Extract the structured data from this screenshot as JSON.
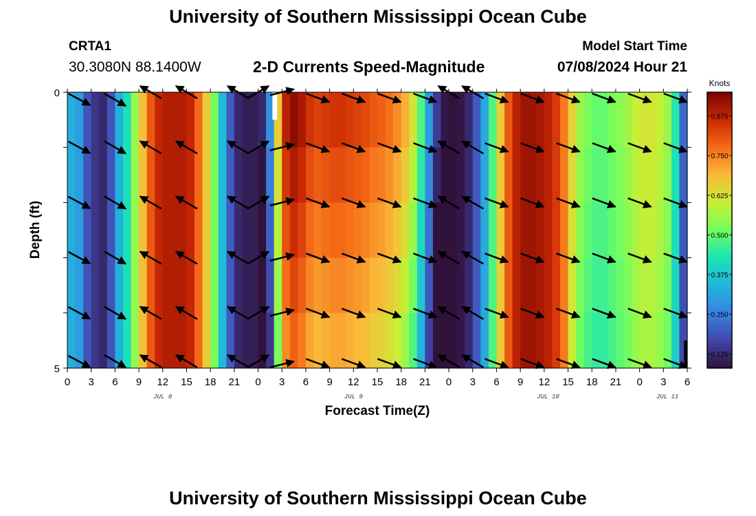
{
  "header": {
    "title": "University of Southern Mississippi Ocean Cube",
    "station": "CRTA1",
    "coords": "30.3080N  88.1400W",
    "subtitle": "2-D Currents Speed-Magnitude",
    "model_start_label": "Model Start Time",
    "model_start_value": "07/08/2024 Hour 21"
  },
  "footer": {
    "title": "University of Southern Mississippi Ocean Cube"
  },
  "chart_data": {
    "type": "heatmap",
    "title": "2-D Currents Speed-Magnitude",
    "xlabel": "Forecast Time(Z)",
    "ylabel": "Depth (ft)",
    "ylim": [
      0,
      5
    ],
    "y_ticks": [
      "0",
      "5"
    ],
    "x_ticks": [
      "0",
      "3",
      "6",
      "9",
      "12",
      "15",
      "18",
      "21",
      "0",
      "3",
      "6",
      "9",
      "12",
      "15",
      "18",
      "21",
      "0",
      "3",
      "6",
      "9",
      "12",
      "15",
      "18",
      "21",
      "0",
      "3",
      "6"
    ],
    "day_labels": [
      "JUL 8",
      "JUL 9",
      "JUL 10",
      "JUL 11"
    ],
    "colorbar": {
      "unit": "Knots",
      "ticks": [
        "0.125",
        "0.250",
        "0.375",
        "0.500",
        "0.625",
        "0.750",
        "0.875"
      ],
      "range": [
        0.08,
        0.95
      ]
    },
    "speed_profile_knots": [
      0.33,
      0.3,
      0.19,
      0.14,
      0.12,
      0.19,
      0.33,
      0.42,
      0.55,
      0.68,
      0.8,
      0.87,
      0.89,
      0.89,
      0.89,
      0.87,
      0.78,
      0.66,
      0.52,
      0.35,
      0.2,
      0.12,
      0.1,
      0.1,
      0.12,
      0.28,
      0.66,
      0.88,
      0.93,
      0.9,
      0.85,
      0.83,
      0.84,
      0.85,
      0.85,
      0.84,
      0.83,
      0.82,
      0.8,
      0.79,
      0.77,
      0.74,
      0.7,
      0.62,
      0.48,
      0.3,
      0.15,
      0.09,
      0.08,
      0.09,
      0.12,
      0.2,
      0.32,
      0.48,
      0.66,
      0.8,
      0.88,
      0.91,
      0.91,
      0.9,
      0.88,
      0.84,
      0.76,
      0.65,
      0.56,
      0.52,
      0.5,
      0.5,
      0.52,
      0.54,
      0.56,
      0.6,
      0.62,
      0.62,
      0.6,
      0.56,
      0.44,
      0.22,
      0.1
    ],
    "time_axis": {
      "start_hour": 0,
      "end_hour": 78,
      "step_hours": 1
    },
    "vector_depth_rows_ft": [
      0,
      1,
      2,
      3,
      4,
      5
    ],
    "vector_times_hours": [
      1.5,
      6,
      10.5,
      15,
      21.5,
      24,
      27,
      31.5,
      36,
      40.5,
      45,
      48,
      51,
      54,
      58.5,
      63,
      67.5,
      72,
      76.5
    ],
    "vector_directions_deg": [
      -28,
      -30,
      150,
      150,
      150,
      30,
      14,
      -20,
      -20,
      -20,
      -20,
      150,
      150,
      -20,
      -20,
      -20,
      -20,
      -20,
      -20
    ],
    "notes_bars": [
      "white gap near hour 26",
      "black bar at bottom near hour 78"
    ]
  }
}
